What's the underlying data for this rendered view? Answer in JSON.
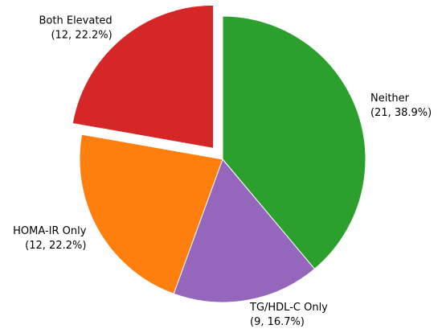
{
  "chart_data": {
    "type": "pie",
    "categories": [
      "Neither",
      "TG/HDL-C Only",
      "HOMA-IR Only",
      "Both Elevated"
    ],
    "values": [
      21,
      9,
      12,
      12
    ],
    "value_labels": [
      "(21, 38.9%)",
      "(9, 16.7%)",
      "(12, 22.2%)",
      "(12, 22.2%)"
    ],
    "colors": [
      "#2ca02c",
      "#9467bd",
      "#ff7f0e",
      "#d62728"
    ],
    "explode": [
      0,
      0,
      0,
      0.1
    ]
  }
}
